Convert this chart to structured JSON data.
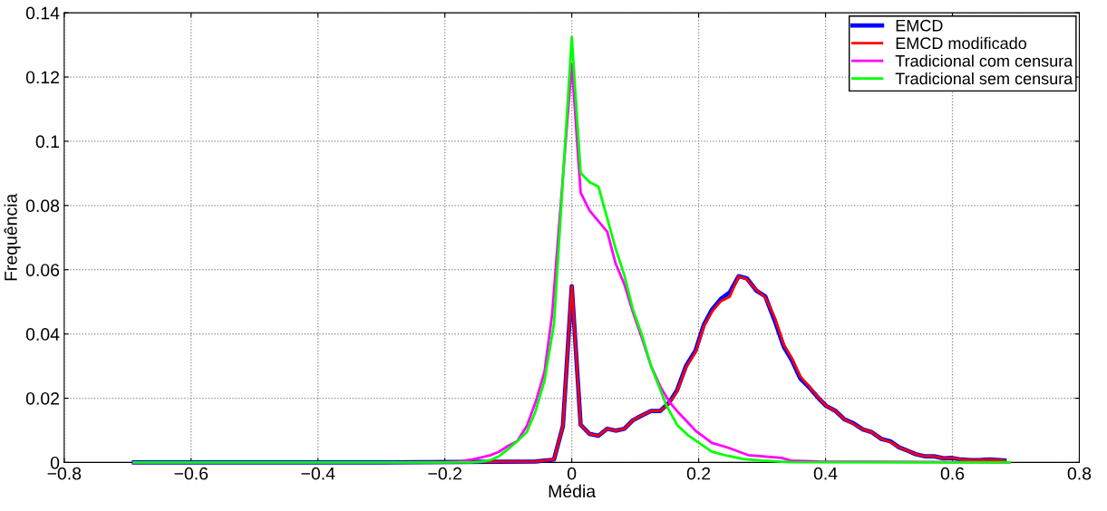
{
  "chart_data": {
    "type": "line",
    "xlabel": "Média",
    "ylabel": "Frequência",
    "xlim": [
      -0.8,
      0.8
    ],
    "ylim": [
      0,
      0.14
    ],
    "xticks": [
      {
        "value": -0.8,
        "label": "−0.8"
      },
      {
        "value": -0.6,
        "label": "−0.6"
      },
      {
        "value": -0.4,
        "label": "−0.4"
      },
      {
        "value": -0.2,
        "label": "−0.2"
      },
      0,
      0.2,
      0.4,
      0.6,
      0.8
    ],
    "yticks": [
      0,
      0.02,
      0.04,
      0.06,
      0.08,
      0.1,
      0.12,
      0.14
    ],
    "grid": true,
    "legend": "top right",
    "line_style": "solid",
    "marker": "none",
    "series": [
      {
        "name": "EMCD",
        "color": "#0000ff",
        "x": [
          -0.69,
          -0.3,
          -0.057,
          -0.028,
          -0.014,
          0,
          0.014,
          0.028,
          0.042,
          0.056,
          0.069,
          0.083,
          0.096,
          0.111,
          0.125,
          0.139,
          0.153,
          0.166,
          0.18,
          0.195,
          0.208,
          0.221,
          0.235,
          0.249,
          0.263,
          0.276,
          0.291,
          0.305,
          0.32,
          0.334,
          0.347,
          0.36,
          0.375,
          0.389,
          0.401,
          0.416,
          0.43,
          0.444,
          0.459,
          0.473,
          0.488,
          0.502,
          0.516,
          0.53,
          0.542,
          0.557,
          0.571,
          0.586,
          0.6,
          0.614,
          0.629,
          0.643,
          0.658,
          0.682
        ],
        "values": [
          0,
          0,
          0.0003,
          0.0009,
          0.0113,
          0.0549,
          0.0117,
          0.0089,
          0.0083,
          0.0105,
          0.0099,
          0.0105,
          0.0131,
          0.0147,
          0.016,
          0.016,
          0.0185,
          0.0225,
          0.03,
          0.0348,
          0.0428,
          0.0476,
          0.0509,
          0.053,
          0.058,
          0.0573,
          0.0535,
          0.0517,
          0.0441,
          0.0361,
          0.0318,
          0.0262,
          0.0232,
          0.02,
          0.0176,
          0.016,
          0.0134,
          0.0122,
          0.0103,
          0.0094,
          0.0073,
          0.0066,
          0.0047,
          0.0036,
          0.0026,
          0.0019,
          0.0019,
          0.0013,
          0.0014,
          0.0009,
          0.0007,
          0.0007,
          0.0009,
          0.0006
        ]
      },
      {
        "name": "EMCD modificado",
        "color": "#ff0000",
        "x": [
          -0.69,
          -0.3,
          -0.057,
          -0.028,
          -0.014,
          0,
          0.014,
          0.028,
          0.042,
          0.056,
          0.069,
          0.083,
          0.096,
          0.111,
          0.125,
          0.139,
          0.153,
          0.166,
          0.18,
          0.195,
          0.208,
          0.221,
          0.235,
          0.249,
          0.263,
          0.276,
          0.291,
          0.305,
          0.32,
          0.334,
          0.347,
          0.36,
          0.375,
          0.389,
          0.401,
          0.416,
          0.43,
          0.444,
          0.459,
          0.473,
          0.488,
          0.502,
          0.516,
          0.53,
          0.542,
          0.557,
          0.571,
          0.586,
          0.6,
          0.614,
          0.629,
          0.643,
          0.658,
          0.682
        ],
        "values": [
          0,
          0,
          0.0003,
          0.0009,
          0.0113,
          0.0549,
          0.0117,
          0.0089,
          0.0083,
          0.0105,
          0.0099,
          0.0105,
          0.0131,
          0.0147,
          0.016,
          0.016,
          0.0183,
          0.0221,
          0.0296,
          0.0343,
          0.0423,
          0.0469,
          0.0502,
          0.0516,
          0.0579,
          0.057,
          0.0537,
          0.0514,
          0.0451,
          0.0368,
          0.0324,
          0.0269,
          0.0235,
          0.0202,
          0.0176,
          0.016,
          0.0134,
          0.012,
          0.0103,
          0.0094,
          0.0073,
          0.0064,
          0.0047,
          0.0036,
          0.0026,
          0.0019,
          0.0019,
          0.0013,
          0.0014,
          0.0009,
          0.0007,
          0.0007,
          0.0009,
          0.0006
        ]
      },
      {
        "name": "Tradicional com censura",
        "color": "#ff00ff",
        "x": [
          -0.69,
          -0.2,
          -0.18,
          -0.158,
          -0.129,
          -0.115,
          -0.1,
          -0.086,
          -0.071,
          -0.057,
          -0.043,
          -0.031,
          0,
          0.014,
          0.028,
          0.042,
          0.056,
          0.069,
          0.083,
          0.096,
          0.111,
          0.125,
          0.14,
          0.154,
          0.166,
          0.18,
          0.195,
          0.221,
          0.245,
          0.278,
          0.331,
          0.345,
          0.39,
          0.69
        ],
        "values": [
          0,
          0,
          0.0002,
          0.0009,
          0.0022,
          0.0033,
          0.0052,
          0.0066,
          0.0113,
          0.0188,
          0.0282,
          0.046,
          0.124,
          0.084,
          0.0784,
          0.0751,
          0.0718,
          0.062,
          0.0554,
          0.047,
          0.0385,
          0.03,
          0.0235,
          0.0188,
          0.016,
          0.0131,
          0.0099,
          0.0061,
          0.0047,
          0.0023,
          0.0014,
          0.0006,
          0.0003,
          0
        ]
      },
      {
        "name": "Tradicional sem censura",
        "color": "#00ff00",
        "x": [
          -0.69,
          -0.16,
          -0.143,
          -0.129,
          -0.115,
          -0.1,
          -0.086,
          -0.071,
          -0.057,
          -0.043,
          -0.028,
          -0.014,
          0,
          0.014,
          0.028,
          0.042,
          0.069,
          0.083,
          0.096,
          0.111,
          0.125,
          0.149,
          0.166,
          0.183,
          0.197,
          0.221,
          0.245,
          0.27,
          0.3,
          0.345,
          0.69
        ],
        "values": [
          0,
          0,
          0.0002,
          0.0007,
          0.0019,
          0.0042,
          0.0066,
          0.0094,
          0.016,
          0.0254,
          0.0432,
          0.088,
          0.1324,
          0.0901,
          0.0873,
          0.0859,
          0.0667,
          0.0582,
          0.0479,
          0.0394,
          0.03,
          0.0178,
          0.0117,
          0.0085,
          0.0066,
          0.0033,
          0.0021,
          0.0011,
          0.0006,
          0.0001,
          0
        ]
      }
    ]
  }
}
